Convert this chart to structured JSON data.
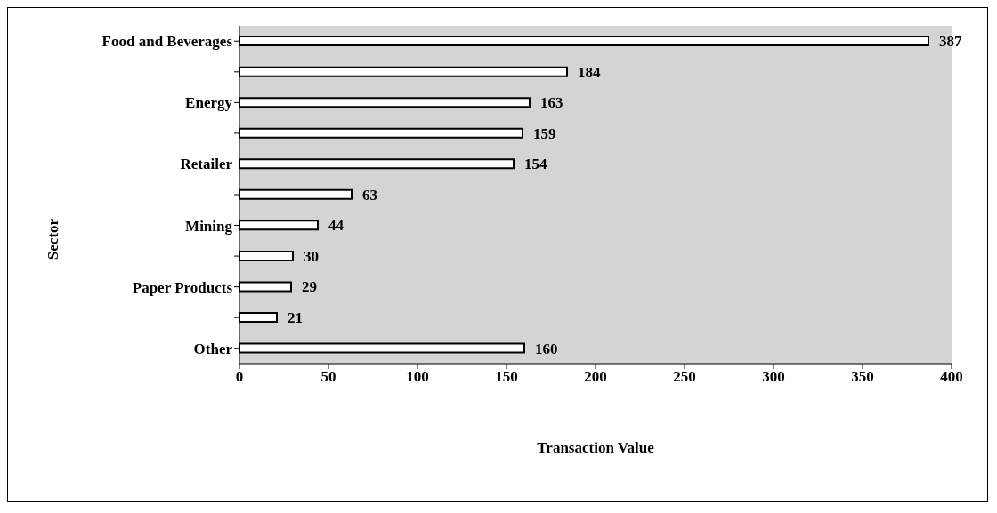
{
  "chart_data": {
    "type": "bar",
    "orientation": "horizontal",
    "xlabel": "Transaction Value",
    "ylabel": "Sector",
    "categories": [
      "Food and Beverages",
      null,
      "Energy",
      null,
      "Retailer",
      null,
      "Mining",
      null,
      "Paper Products",
      null,
      "Other"
    ],
    "values": [
      387,
      184,
      163,
      159,
      154,
      63,
      44,
      30,
      29,
      21,
      160
    ],
    "color": "#ffffff",
    "xlim": [
      0,
      400
    ],
    "xticks": [
      0,
      50,
      100,
      150,
      200,
      250,
      300,
      350,
      400
    ],
    "data_labels": true,
    "grid": false
  }
}
